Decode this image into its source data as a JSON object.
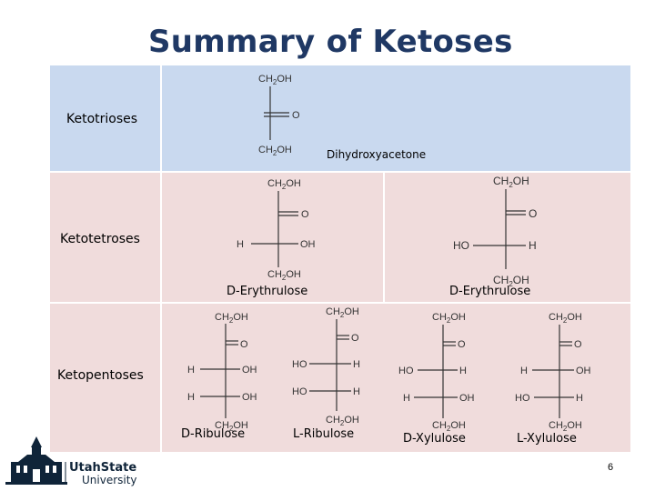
{
  "slide": {
    "title": "Summary of Ketoses",
    "page_number": "6"
  },
  "rows": {
    "ketotrioses": "Ketotrioses",
    "ketotetroses": "Ketotetroses",
    "ketopentoses": "Ketopentoses"
  },
  "captions": {
    "dihydroxyacetone": "Dihydroxyacetone",
    "d_erythrulose": "D-Erythrulose",
    "d_erythrulose_2": "D-Erythrulose",
    "d_ribulose": "D-Ribulose",
    "l_ribulose": "L-Ribulose",
    "d_xylulose": "D-Xylulose",
    "l_xylulose": "L-Xylulose"
  },
  "chem": {
    "ch2oh": "CH",
    "sub2": "2",
    "oh_suffix": "OH",
    "o": "O",
    "h": "H",
    "oh": "OH",
    "ho": "HO"
  },
  "logo": {
    "line1": "UtahState",
    "line2": "University"
  }
}
